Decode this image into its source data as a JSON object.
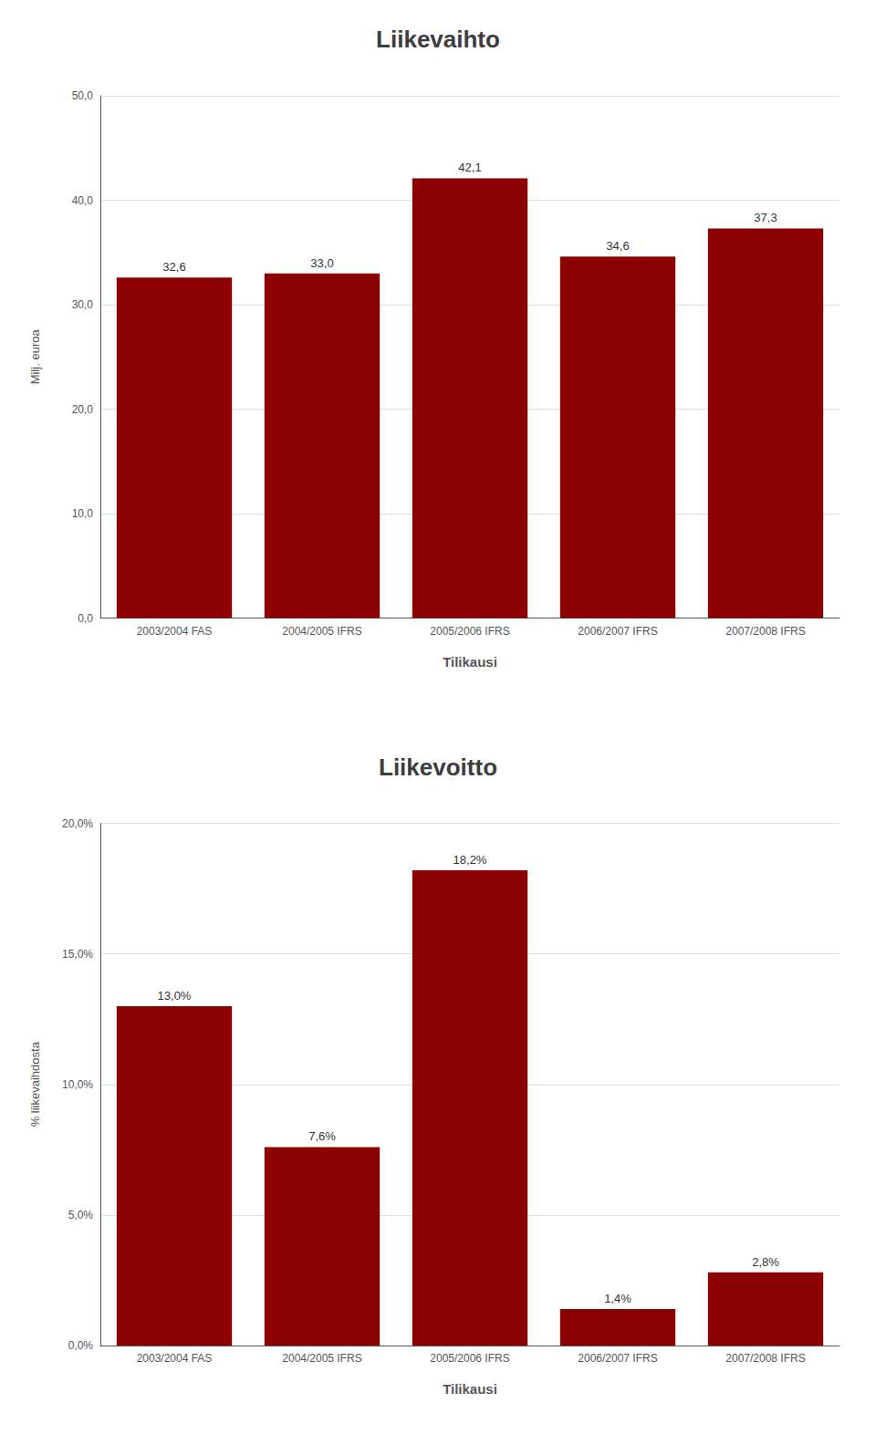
{
  "chart_data": [
    {
      "type": "bar",
      "title": "Liikevaihto",
      "categories": [
        "2003/2004 FAS",
        "2004/2005 IFRS",
        "2005/2006 IFRS",
        "2006/2007 IFRS",
        "2007/2008 IFRS"
      ],
      "values": [
        32.6,
        33.0,
        42.1,
        34.6,
        37.3
      ],
      "value_labels": [
        "32,6",
        "33,0",
        "42,1",
        "34,6",
        "37,3"
      ],
      "data_labels": true,
      "color": "#8B0000",
      "xlabel": "Tilikausi",
      "ylabel": "Milj. euroa",
      "ylim": [
        0,
        50
      ],
      "yticks": [
        {
          "value": 0,
          "label": "0,0"
        },
        {
          "value": 10,
          "label": "10,0"
        },
        {
          "value": 20,
          "label": "20,0"
        },
        {
          "value": 30,
          "label": "30,0"
        },
        {
          "value": 40,
          "label": "40,0"
        },
        {
          "value": 50,
          "label": "50,0"
        }
      ],
      "grid": true
    },
    {
      "type": "bar",
      "title": "Liikevoitto",
      "categories": [
        "2003/2004 FAS",
        "2004/2005 IFRS",
        "2005/2006 IFRS",
        "2006/2007 IFRS",
        "2007/2008 IFRS"
      ],
      "values": [
        13.0,
        7.6,
        18.2,
        1.4,
        2.8
      ],
      "value_labels": [
        "13,0%",
        "7,6%",
        "18,2%",
        "1,4%",
        "2,8%"
      ],
      "data_labels": true,
      "color": "#8B0000",
      "xlabel": "Tilikausi",
      "ylabel": "% liikevaihdosta",
      "ylim": [
        0,
        20
      ],
      "yticks": [
        {
          "value": 0,
          "label": "0,0%"
        },
        {
          "value": 5,
          "label": "5,0%"
        },
        {
          "value": 10,
          "label": "10,0%"
        },
        {
          "value": 15,
          "label": "15,0%"
        },
        {
          "value": 20,
          "label": "20,0%"
        }
      ],
      "grid": true
    }
  ]
}
